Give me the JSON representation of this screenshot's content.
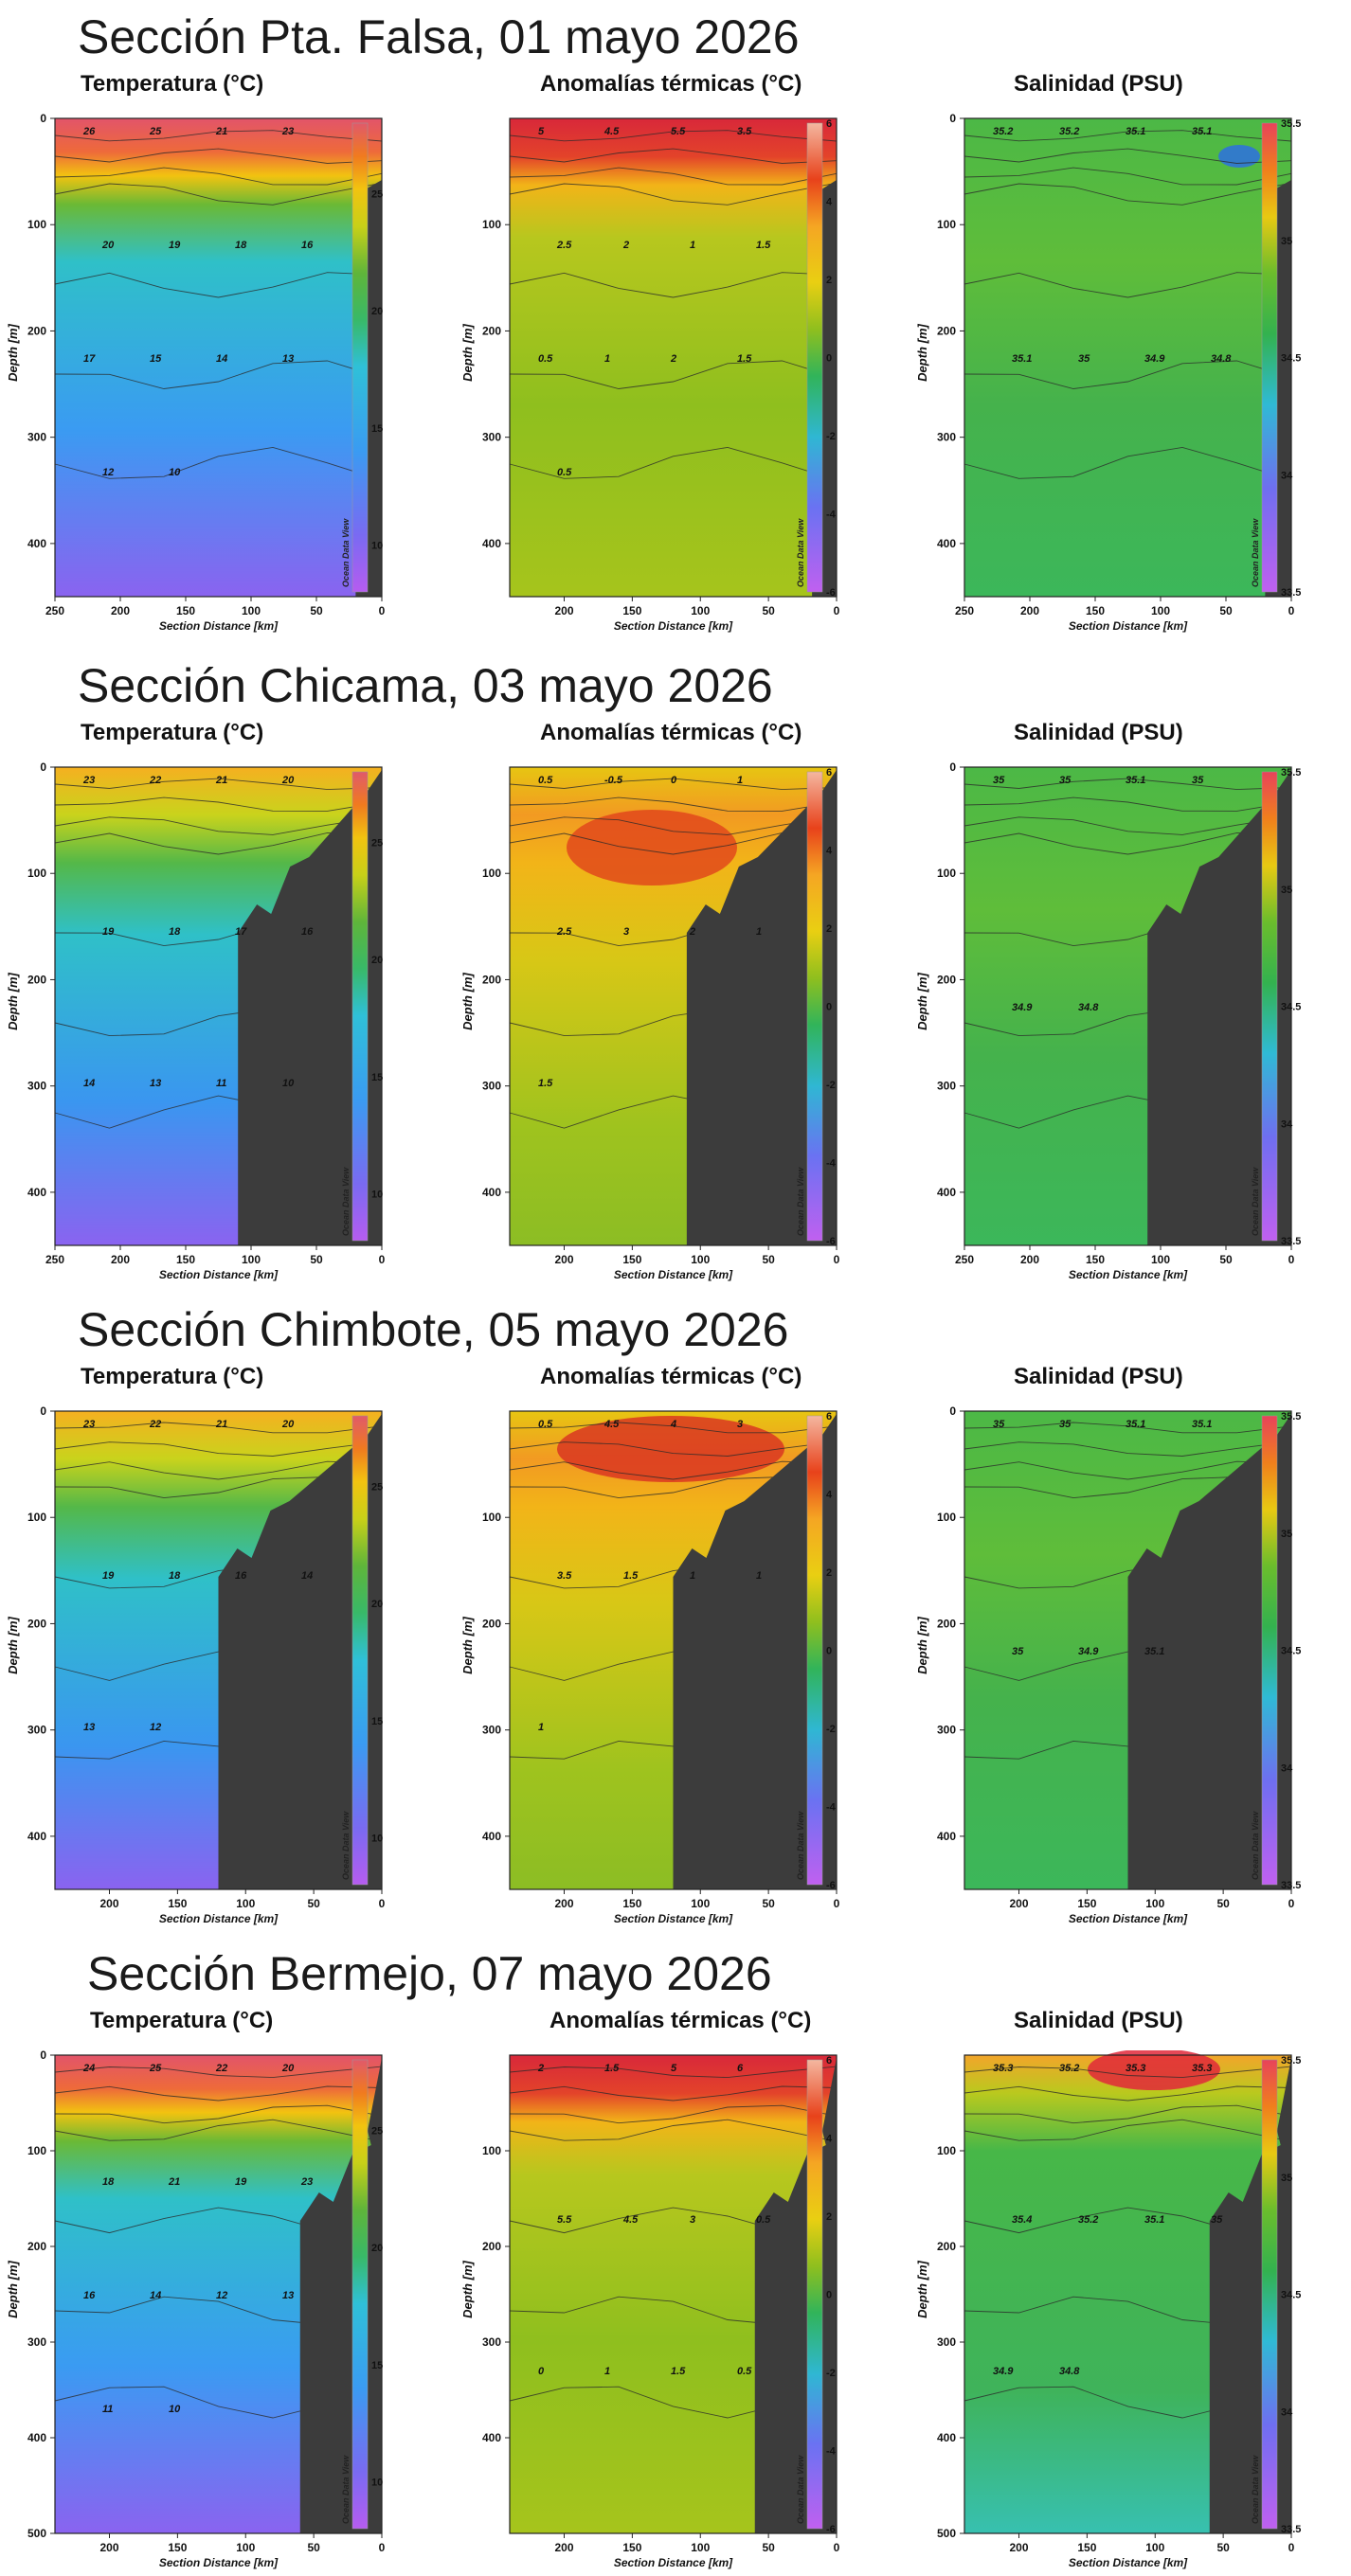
{
  "sections": [
    {
      "title": "Sección Pta. Falsa, 01 mayo 2026",
      "panels": [
        {
          "title": "Temperatura  (°C)",
          "kind": "temp",
          "xlim": [
            250,
            0
          ],
          "xticks": [
            "250",
            "200",
            "150",
            "100",
            "50",
            "0"
          ],
          "ylim": [
            0,
            450
          ],
          "yticks": [
            "0",
            "100",
            "200",
            "300",
            "400"
          ],
          "bathy_start_km": 20,
          "surface_hot": true,
          "contour_labels": [
            "26",
            "25",
            "21",
            "23",
            "20",
            "19",
            "18",
            "16",
            "17",
            "15",
            "14",
            "13",
            "12",
            "10"
          ]
        },
        {
          "title": "Anomalías térmicas (°C)",
          "kind": "anom",
          "xlim": [
            240,
            0
          ],
          "xticks": [
            "200",
            "150",
            "100",
            "50",
            "0"
          ],
          "ylim": [
            0,
            450
          ],
          "yticks": [
            "100",
            "200",
            "300",
            "400"
          ],
          "bathy_start_km": 18,
          "surface_hot": true,
          "contour_labels": [
            "5",
            "4.5",
            "5.5",
            "3.5",
            "2.5",
            "2",
            "1",
            "1.5",
            "0.5",
            "1",
            "2",
            "1.5",
            "0.5"
          ]
        },
        {
          "title": "Salinidad (PSU)",
          "kind": "sal",
          "xlim": [
            250,
            0
          ],
          "xticks": [
            "250",
            "200",
            "150",
            "100",
            "50",
            "0"
          ],
          "ylim": [
            0,
            450
          ],
          "yticks": [
            "0",
            "100",
            "200",
            "300",
            "400"
          ],
          "bathy_start_km": 20,
          "surface_hot": false,
          "contour_labels": [
            "35.2",
            "35.2",
            "35.1",
            "35.1",
            "35.1",
            "35",
            "34.9",
            "34.8"
          ]
        }
      ]
    },
    {
      "title": "Sección Chicama, 03 mayo 2026",
      "panels": [
        {
          "title": "Temperatura  (°C)",
          "kind": "temp",
          "xlim": [
            250,
            0
          ],
          "xticks": [
            "250",
            "200",
            "150",
            "100",
            "50",
            "0"
          ],
          "ylim": [
            0,
            450
          ],
          "yticks": [
            "0",
            "100",
            "200",
            "300",
            "400"
          ],
          "bathy_start_km": 110,
          "surface_hot": false,
          "contour_labels": [
            "23",
            "22",
            "21",
            "20",
            "19",
            "18",
            "17",
            "16",
            "14",
            "13",
            "11",
            "10"
          ]
        },
        {
          "title": "Anomalías térmicas (°C)",
          "kind": "anom",
          "xlim": [
            240,
            0
          ],
          "xticks": [
            "200",
            "150",
            "100",
            "50",
            "0"
          ],
          "ylim": [
            0,
            450
          ],
          "yticks": [
            "100",
            "200",
            "300",
            "400"
          ],
          "bathy_start_km": 110,
          "surface_hot": false,
          "contour_labels": [
            "0.5",
            "-0.5",
            "0",
            "1",
            "2.5",
            "3",
            "2",
            "1",
            "1.5"
          ]
        },
        {
          "title": "Salinidad (PSU)",
          "kind": "sal",
          "xlim": [
            250,
            0
          ],
          "xticks": [
            "250",
            "200",
            "150",
            "100",
            "50",
            "0"
          ],
          "ylim": [
            0,
            450
          ],
          "yticks": [
            "0",
            "100",
            "200",
            "300",
            "400"
          ],
          "bathy_start_km": 110,
          "surface_hot": false,
          "contour_labels": [
            "35",
            "35",
            "35.1",
            "35",
            "34.9",
            "34.8"
          ]
        }
      ]
    },
    {
      "title": "Sección Chimbote, 05 mayo 2026",
      "panels": [
        {
          "title": "Temperatura  (°C)",
          "kind": "temp",
          "xlim": [
            240,
            0
          ],
          "xticks": [
            "200",
            "150",
            "100",
            "50",
            "0"
          ],
          "ylim": [
            0,
            450
          ],
          "yticks": [
            "0",
            "100",
            "200",
            "300",
            "400"
          ],
          "bathy_start_km": 120,
          "surface_hot": false,
          "contour_labels": [
            "23",
            "22",
            "21",
            "20",
            "19",
            "18",
            "16",
            "14",
            "13",
            "12"
          ]
        },
        {
          "title": "Anomalías térmicas (°C)",
          "kind": "anom",
          "xlim": [
            240,
            0
          ],
          "xticks": [
            "200",
            "150",
            "100",
            "50",
            "0"
          ],
          "ylim": [
            0,
            450
          ],
          "yticks": [
            "100",
            "200",
            "300",
            "400"
          ],
          "bathy_start_km": 120,
          "surface_hot": false,
          "contour_labels": [
            "0.5",
            "4.5",
            "4",
            "3",
            "3.5",
            "1.5",
            "1",
            "1",
            "1"
          ]
        },
        {
          "title": "Salinidad (PSU)",
          "kind": "sal",
          "xlim": [
            240,
            0
          ],
          "xticks": [
            "200",
            "150",
            "100",
            "50",
            "0"
          ],
          "ylim": [
            0,
            450
          ],
          "yticks": [
            "0",
            "100",
            "200",
            "300",
            "400"
          ],
          "bathy_start_km": 120,
          "surface_hot": false,
          "contour_labels": [
            "35",
            "35",
            "35.1",
            "35.1",
            "35",
            "34.9",
            "35.1"
          ]
        }
      ]
    },
    {
      "title": "Sección Bermejo, 07 mayo 2026",
      "panels": [
        {
          "title": "Temperatura  (°C)",
          "kind": "temp",
          "xlim": [
            240,
            0
          ],
          "xticks": [
            "200",
            "150",
            "100",
            "50",
            "0"
          ],
          "ylim": [
            0,
            500
          ],
          "yticks": [
            "0",
            "100",
            "200",
            "300",
            "400",
            "500"
          ],
          "bathy_start_km": 60,
          "surface_hot": true,
          "contour_labels": [
            "24",
            "25",
            "22",
            "20",
            "18",
            "21",
            "19",
            "23",
            "16",
            "14",
            "12",
            "13",
            "11",
            "10"
          ]
        },
        {
          "title": "Anomalías térmicas (°C)",
          "kind": "anom",
          "xlim": [
            240,
            0
          ],
          "xticks": [
            "200",
            "150",
            "100",
            "50",
            "0"
          ],
          "ylim": [
            0,
            500
          ],
          "yticks": [
            "100",
            "200",
            "300",
            "400"
          ],
          "bathy_start_km": 60,
          "surface_hot": true,
          "contour_labels": [
            "2",
            "1.5",
            "5",
            "6",
            "5.5",
            "4.5",
            "3",
            "0.5",
            "0",
            "1",
            "1.5",
            "0.5"
          ]
        },
        {
          "title": "Salinidad (PSU)",
          "kind": "sal",
          "xlim": [
            240,
            0
          ],
          "xticks": [
            "200",
            "150",
            "100",
            "50",
            "0"
          ],
          "ylim": [
            0,
            500
          ],
          "yticks": [
            "100",
            "200",
            "300",
            "400",
            "500"
          ],
          "bathy_start_km": 60,
          "surface_hot": true,
          "contour_labels": [
            "35.3",
            "35.2",
            "35.3",
            "35.3",
            "35.4",
            "35.2",
            "35.1",
            "35",
            "34.9",
            "34.8"
          ]
        }
      ]
    }
  ],
  "common": {
    "xlabel": "Section Distance [km]",
    "ylabel": "Depth [m]",
    "watermark": "Ocean Data View",
    "colorbars": {
      "temp": [
        "25",
        "20",
        "15",
        "10"
      ],
      "anom": [
        "6",
        "4",
        "2",
        "0",
        "-2",
        "-4",
        "-6"
      ],
      "sal": [
        "35.5",
        "35",
        "34.5",
        "34",
        "33.5"
      ]
    }
  },
  "colors": {
    "bathymetry": "#3c3c3c",
    "page_background": "#ffffff"
  },
  "chart_data": [
    {
      "type": "heatmap",
      "title": "Temperatura  (°C)",
      "section": "Sección Pta. Falsa, 01 mayo 2026",
      "xlabel": "Section Distance [km]",
      "ylabel": "Depth [m]",
      "xlim": [
        250,
        0
      ],
      "ylim": [
        450,
        0
      ],
      "colorbar": [
        10,
        25
      ]
    },
    {
      "type": "heatmap",
      "title": "Anomalías térmicas (°C)",
      "section": "Sección Pta. Falsa, 01 mayo 2026",
      "xlabel": "Section Distance [km]",
      "ylabel": "Depth [m]",
      "xlim": [
        240,
        0
      ],
      "ylim": [
        450,
        0
      ],
      "colorbar": [
        -6,
        6
      ]
    },
    {
      "type": "heatmap",
      "title": "Salinidad (PSU)",
      "section": "Sección Pta. Falsa, 01 mayo 2026",
      "xlabel": "Section Distance [km]",
      "ylabel": "Depth [m]",
      "xlim": [
        250,
        0
      ],
      "ylim": [
        450,
        0
      ],
      "colorbar": [
        33.5,
        35.5
      ]
    },
    {
      "type": "heatmap",
      "title": "Temperatura  (°C)",
      "section": "Sección Chicama, 03 mayo 2026",
      "xlim": [
        250,
        0
      ],
      "ylim": [
        450,
        0
      ],
      "colorbar": [
        10,
        25
      ]
    },
    {
      "type": "heatmap",
      "title": "Anomalías térmicas (°C)",
      "section": "Sección Chicama, 03 mayo 2026",
      "xlim": [
        240,
        0
      ],
      "ylim": [
        450,
        0
      ],
      "colorbar": [
        -6,
        6
      ]
    },
    {
      "type": "heatmap",
      "title": "Salinidad (PSU)",
      "section": "Sección Chicama, 03 mayo 2026",
      "xlim": [
        250,
        0
      ],
      "ylim": [
        450,
        0
      ],
      "colorbar": [
        33.5,
        35.5
      ]
    },
    {
      "type": "heatmap",
      "title": "Temperatura  (°C)",
      "section": "Sección Chimbote, 05 mayo 2026",
      "xlim": [
        240,
        0
      ],
      "ylim": [
        450,
        0
      ],
      "colorbar": [
        10,
        25
      ]
    },
    {
      "type": "heatmap",
      "title": "Anomalías térmicas (°C)",
      "section": "Sección Chimbote, 05 mayo 2026",
      "xlim": [
        240,
        0
      ],
      "ylim": [
        450,
        0
      ],
      "colorbar": [
        -6,
        6
      ]
    },
    {
      "type": "heatmap",
      "title": "Salinidad (PSU)",
      "section": "Sección Chimbote, 05 mayo 2026",
      "xlim": [
        240,
        0
      ],
      "ylim": [
        450,
        0
      ],
      "colorbar": [
        33.5,
        35.5
      ]
    },
    {
      "type": "heatmap",
      "title": "Temperatura  (°C)",
      "section": "Sección Bermejo, 07 mayo 2026",
      "xlim": [
        240,
        0
      ],
      "ylim": [
        500,
        0
      ],
      "colorbar": [
        10,
        25
      ]
    },
    {
      "type": "heatmap",
      "title": "Anomalías térmicas (°C)",
      "section": "Sección Bermejo, 07 mayo 2026",
      "xlim": [
        240,
        0
      ],
      "ylim": [
        500,
        0
      ],
      "colorbar": [
        -6,
        6
      ]
    },
    {
      "type": "heatmap",
      "title": "Salinidad (PSU)",
      "section": "Sección Bermejo, 07 mayo 2026",
      "xlim": [
        240,
        0
      ],
      "ylim": [
        500,
        0
      ],
      "colorbar": [
        33.5,
        35.5
      ]
    }
  ]
}
